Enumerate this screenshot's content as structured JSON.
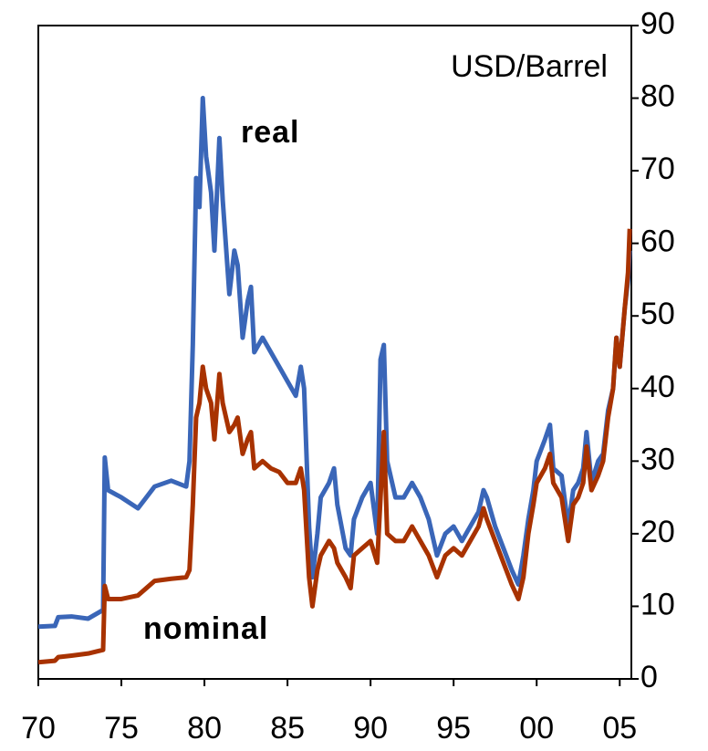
{
  "chart_data": {
    "type": "line",
    "y_label": "USD/Barrel",
    "annotations": [
      "real",
      "nominal"
    ],
    "x": [
      1970,
      1971,
      1971.2,
      1972,
      1973,
      1973.9,
      1974,
      1974.2,
      1975,
      1976,
      1976.5,
      1977,
      1978,
      1978.9,
      1979.1,
      1979.3,
      1979.5,
      1979.7,
      1979.9,
      1980.1,
      1980.4,
      1980.6,
      1980.9,
      1981.1,
      1981.5,
      1981.8,
      1982,
      1982.3,
      1982.6,
      1982.8,
      1983,
      1983.5,
      1984,
      1984.5,
      1985,
      1985.5,
      1985.8,
      1986,
      1986.3,
      1986.5,
      1986.8,
      1987,
      1987.5,
      1987.8,
      1988,
      1988.5,
      1988.8,
      1989,
      1989.5,
      1990,
      1990.4,
      1990.6,
      1990.8,
      1991,
      1991.5,
      1992,
      1992.5,
      1993,
      1993.5,
      1994,
      1994.5,
      1995,
      1995.5,
      1996,
      1996.5,
      1996.8,
      1997,
      1997.5,
      1998,
      1998.5,
      1998.9,
      1999.2,
      1999.5,
      1999.8,
      2000,
      2000.5,
      2000.8,
      2001,
      2001.5,
      2001.9,
      2002.2,
      2002.5,
      2002.8,
      2003,
      2003.3,
      2003.7,
      2004,
      2004.3,
      2004.6,
      2004.8,
      2005,
      2005.3,
      2005.5,
      2005.6
    ],
    "series": [
      {
        "name": "real",
        "color": "#3a66b8",
        "values": [
          7.2,
          7.3,
          8.5,
          8.6,
          8.3,
          9.5,
          30.5,
          26,
          25,
          23.5,
          25,
          26.5,
          27.3,
          26.5,
          30,
          46,
          69,
          65,
          80,
          72,
          67,
          59,
          74.5,
          66,
          53,
          59,
          57,
          47,
          52,
          54,
          45,
          47,
          45,
          43,
          41,
          39,
          43,
          40,
          21,
          14,
          20,
          25,
          27,
          29,
          24,
          18,
          17,
          22,
          25,
          27,
          20,
          44,
          46,
          30,
          25,
          25,
          27,
          25,
          22,
          17,
          20,
          21,
          19,
          21,
          23,
          26,
          25,
          21,
          18,
          15,
          13,
          17,
          22,
          26,
          30,
          33,
          35,
          29,
          28,
          21,
          26,
          27,
          29,
          34,
          27,
          30,
          31,
          37,
          40,
          47,
          43,
          51,
          55,
          59
        ]
      },
      {
        "name": "nominal",
        "color": "#a83200",
        "values": [
          2.3,
          2.5,
          3,
          3.2,
          3.5,
          4,
          12.8,
          11,
          11,
          11.5,
          12.5,
          13.5,
          13.8,
          14,
          15,
          24,
          36,
          38,
          43,
          40,
          38,
          33,
          42,
          38,
          34,
          35,
          36,
          31,
          33,
          34,
          29,
          30,
          29,
          28.5,
          27,
          27,
          29,
          26,
          14,
          10,
          15,
          17,
          19,
          18,
          16,
          14,
          12.5,
          17,
          18,
          19,
          16,
          25,
          34,
          20,
          19,
          19,
          21,
          19,
          17,
          14,
          17,
          18,
          17,
          19,
          21,
          23.5,
          22,
          19,
          16,
          13,
          11,
          14,
          20,
          24,
          27,
          29,
          31,
          27,
          25,
          19,
          24,
          25,
          27,
          32,
          26,
          28,
          30,
          36,
          40,
          47,
          43,
          51,
          56,
          62
        ]
      }
    ],
    "xlim": [
      1970,
      2005.7
    ],
    "xticks": [
      {
        "value": 1970,
        "label": "70"
      },
      {
        "value": 1975,
        "label": "75"
      },
      {
        "value": 1980,
        "label": "80"
      },
      {
        "value": 1985,
        "label": "85"
      },
      {
        "value": 1990,
        "label": "90"
      },
      {
        "value": 1995,
        "label": "95"
      },
      {
        "value": 2000,
        "label": "00"
      },
      {
        "value": 2005,
        "label": "05"
      }
    ],
    "ylim": [
      0,
      90
    ],
    "yticks": [
      0,
      10,
      20,
      30,
      40,
      50,
      60,
      70,
      80,
      90
    ],
    "y_axis_side": "right",
    "grid": false
  }
}
